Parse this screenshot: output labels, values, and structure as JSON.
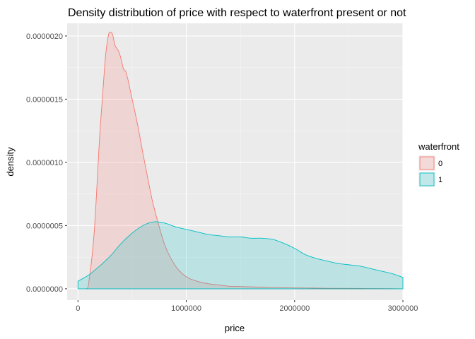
{
  "chart_data": {
    "type": "area",
    "title": "Density distribution of price with respect to waterfront   present or not",
    "xlabel": "price",
    "ylabel": "density",
    "xlim": [
      -100000,
      3000000
    ],
    "ylim": [
      -9e-08,
      2.1e-06
    ],
    "x_ticks": [
      0,
      1000000,
      2000000,
      3000000
    ],
    "x_tick_labels": [
      "0",
      "1000000",
      "2000000",
      "3000000"
    ],
    "y_ticks": [
      0.0,
      5e-07,
      1e-06,
      1.5e-06,
      2e-06
    ],
    "y_tick_labels": [
      "0.0000000",
      "0.0000005",
      "0.0000010",
      "0.0000015",
      "0.0000020"
    ],
    "grid": true,
    "legend": {
      "title": "waterfront",
      "placement": "right"
    },
    "series": [
      {
        "name": "0",
        "color": "#F8766D",
        "fill": "rgba(248,118,109,0.2)",
        "x": [
          75000,
          100000,
          150000,
          200000,
          250000,
          280000,
          300000,
          320000,
          340000,
          360000,
          380000,
          400000,
          420000,
          440000,
          460000,
          480000,
          500000,
          550000,
          600000,
          650000,
          700000,
          800000,
          900000,
          1000000,
          1100000,
          1200000,
          1300000,
          1400000,
          1500000,
          1700000,
          1900000,
          2100000,
          2300000,
          2500000,
          2700000,
          2900000,
          3000000
        ],
        "y": [
          0.0,
          5e-08,
          4.5e-07,
          1.2e-06,
          1.8e-06,
          2e-06,
          2.03e-06,
          2.01e-06,
          1.93e-06,
          1.9e-06,
          1.87e-06,
          1.81e-06,
          1.74e-06,
          1.72e-06,
          1.66e-06,
          1.58e-06,
          1.5e-06,
          1.3e-06,
          1.07e-06,
          8.5e-07,
          6.5e-07,
          3.5e-07,
          1.8e-07,
          9.5e-08,
          6e-08,
          4e-08,
          3e-08,
          2e-08,
          1.8e-08,
          1.2e-08,
          8e-09,
          6e-09,
          4e-09,
          3e-09,
          2e-09,
          1e-09,
          0.0
        ]
      },
      {
        "name": "1",
        "color": "#00BFC4",
        "fill": "rgba(0,191,196,0.2)",
        "x": [
          0,
          100000,
          200000,
          300000,
          400000,
          500000,
          600000,
          700000,
          800000,
          900000,
          1000000,
          1100000,
          1200000,
          1300000,
          1400000,
          1500000,
          1600000,
          1700000,
          1800000,
          1900000,
          2000000,
          2100000,
          2200000,
          2300000,
          2400000,
          2500000,
          2600000,
          2700000,
          2800000,
          2900000,
          3000000
        ],
        "y": [
          6e-08,
          1.1e-07,
          1.8e-07,
          2.6e-07,
          3.6e-07,
          4.4e-07,
          5e-07,
          5.3e-07,
          5.2e-07,
          4.9e-07,
          4.7e-07,
          4.5e-07,
          4.3e-07,
          4.2e-07,
          4.1e-07,
          4.1e-07,
          4e-07,
          4e-07,
          3.9e-07,
          3.6e-07,
          3.2e-07,
          2.7e-07,
          2.4e-07,
          2.2e-07,
          2e-07,
          1.9e-07,
          1.8e-07,
          1.6e-07,
          1.4e-07,
          1.2e-07,
          9e-08
        ]
      }
    ]
  }
}
